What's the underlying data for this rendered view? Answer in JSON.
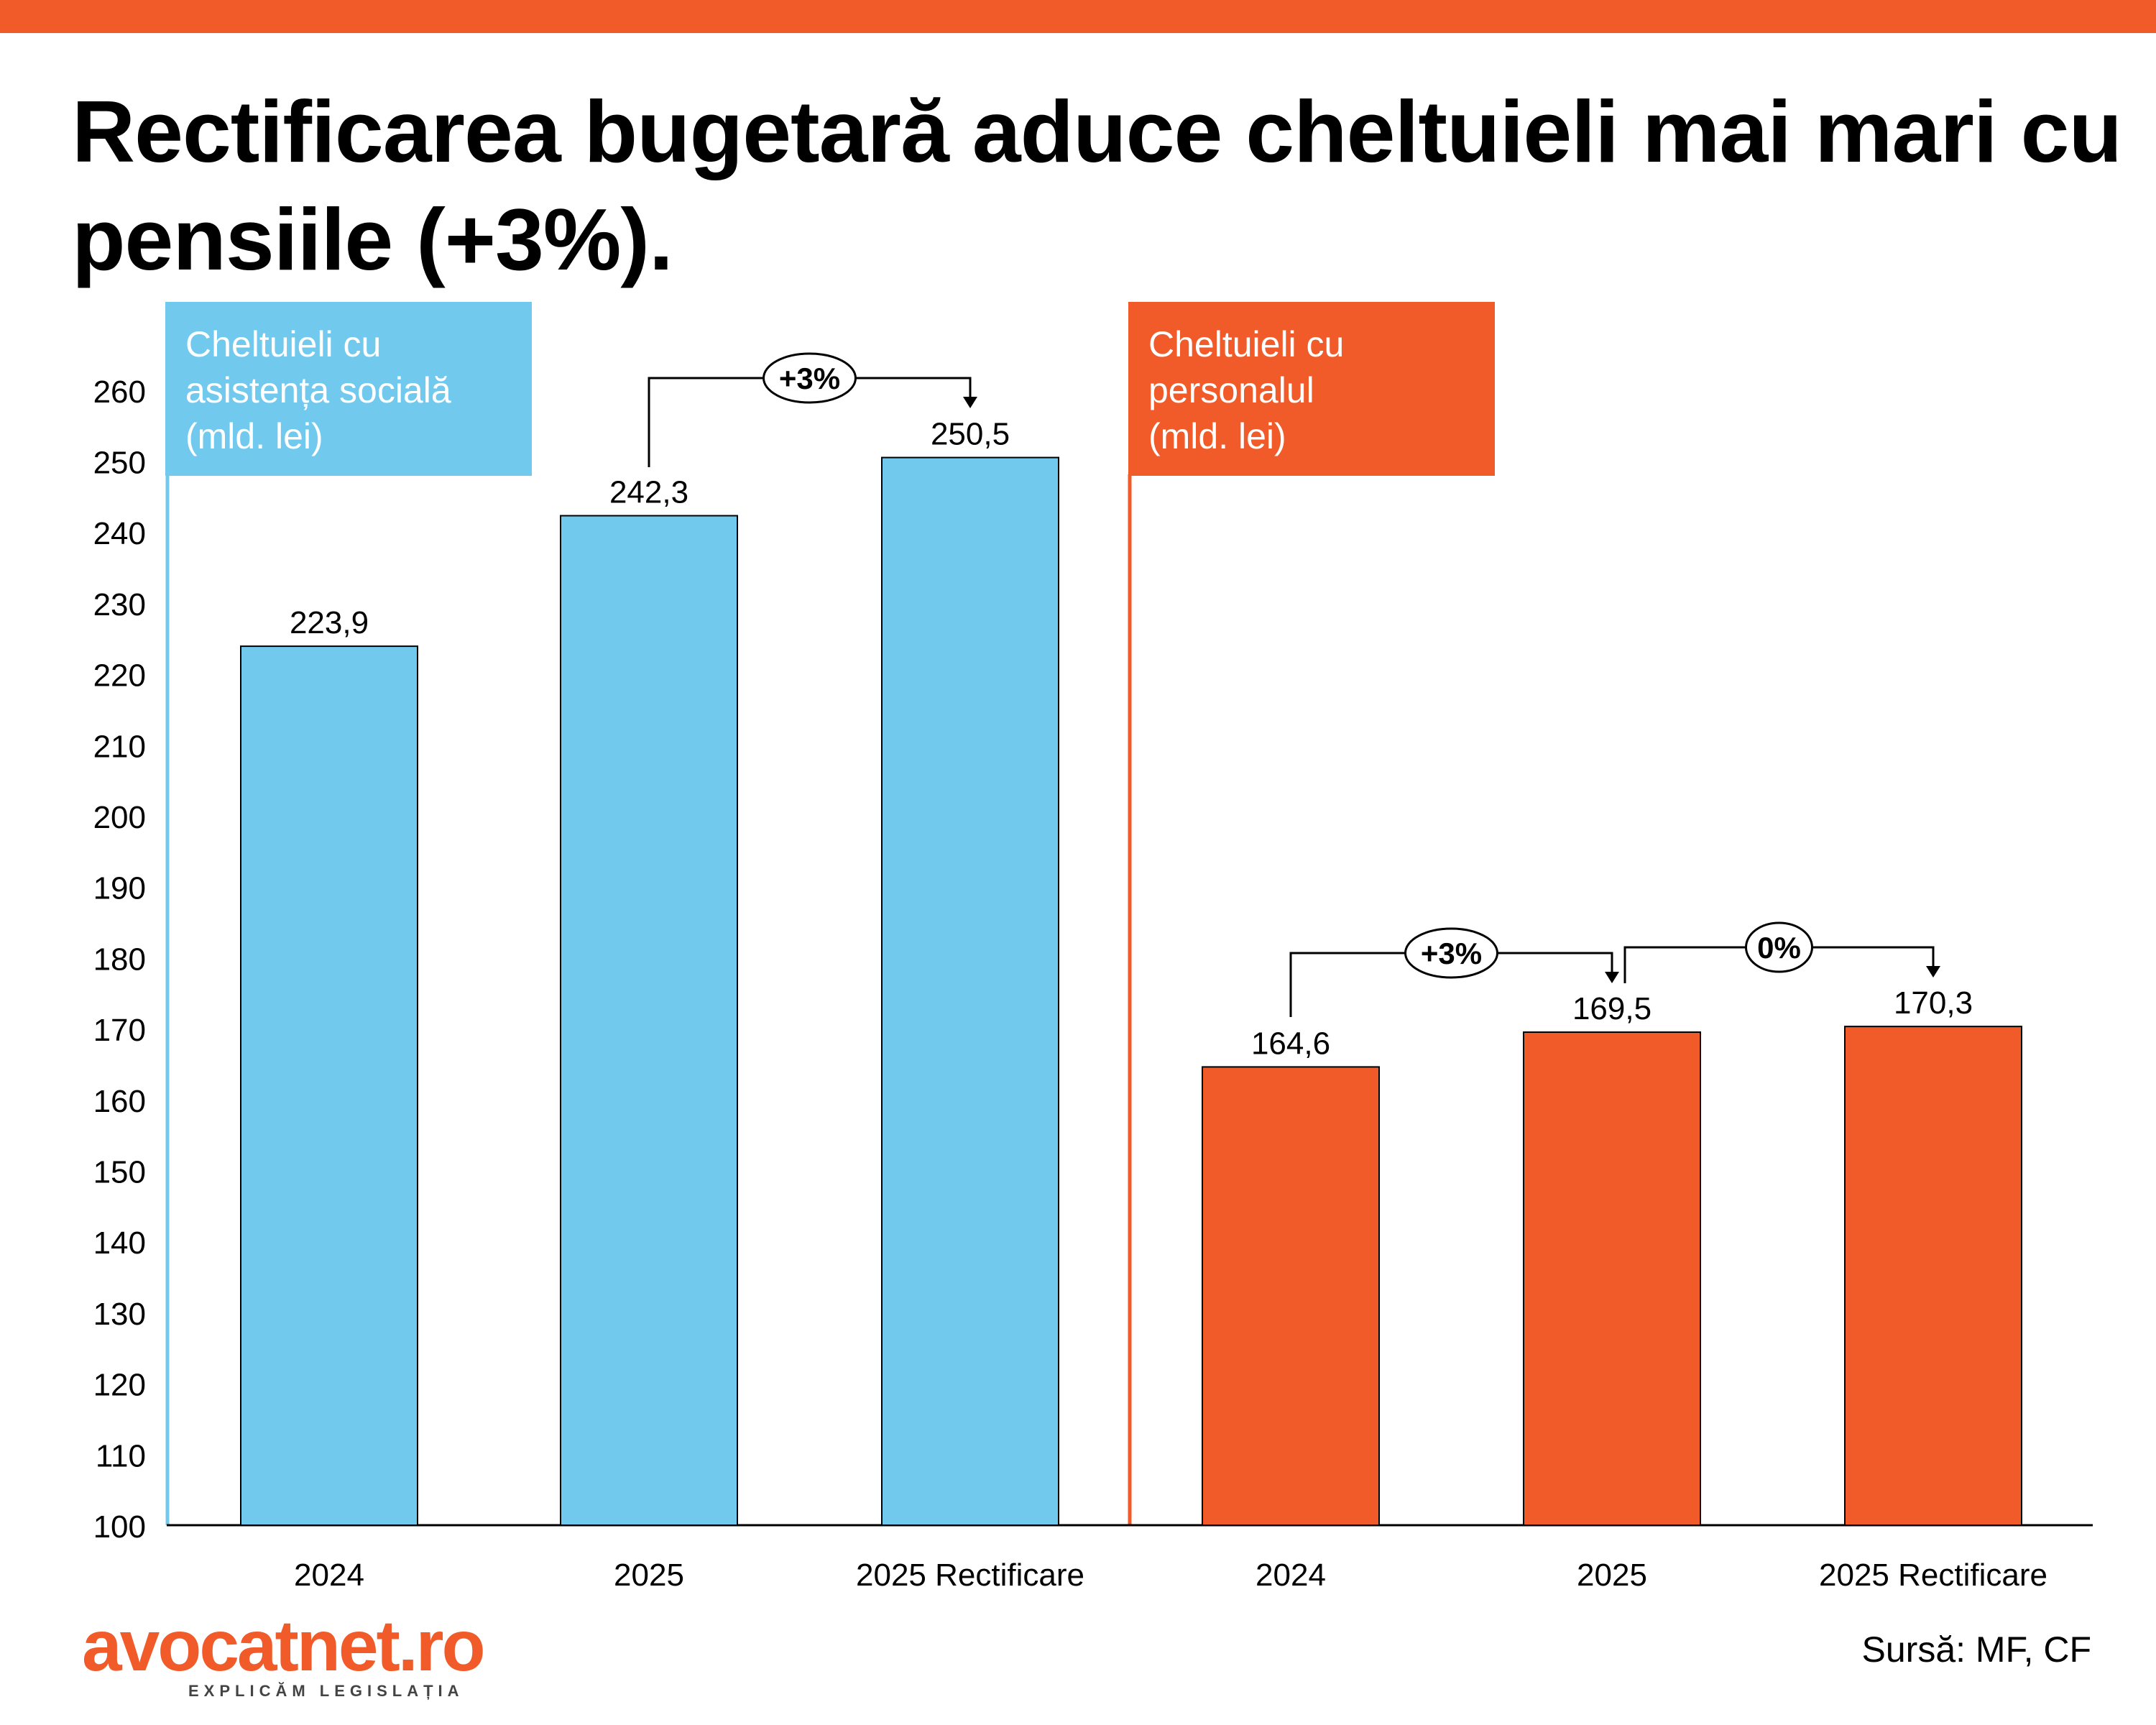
{
  "title": "Rectificarea bugetară aduce cheltuieli mai mari cu pensiile (+3%).",
  "source": "Sursă:  MF, CF",
  "logo": {
    "name": "avocatnet.ro",
    "tagline": "EXPLICĂM LEGISLAȚIA"
  },
  "colors": {
    "accent": "#f15a29",
    "social": "#71c9ee",
    "personnel": "#f15a29"
  },
  "chart_data": {
    "type": "bar",
    "ylim": [
      100,
      265
    ],
    "yticks": [
      100,
      110,
      120,
      130,
      140,
      150,
      160,
      170,
      180,
      190,
      200,
      210,
      220,
      230,
      240,
      250,
      260
    ],
    "groups": [
      {
        "name": "Cheltuieli cu asistența socială (mld. lei)",
        "label_lines": [
          "Cheltuieli cu",
          "asistența socială",
          "(mld. lei)"
        ],
        "color": "#71c9ee",
        "categories": [
          "2024",
          "2025",
          "2025 Rectificare"
        ],
        "values": [
          223.9,
          242.3,
          250.5
        ],
        "value_labels": [
          "223,9",
          "242,3",
          "250,5"
        ]
      },
      {
        "name": "Cheltuieli cu personalul (mld. lei)",
        "label_lines": [
          "Cheltuieli cu",
          "personalul",
          "(mld. lei)"
        ],
        "color": "#f15a29",
        "categories": [
          "2024",
          "2025",
          "2025 Rectificare"
        ],
        "values": [
          164.6,
          169.5,
          170.3
        ],
        "value_labels": [
          "164,6",
          "169,5",
          "170,3"
        ]
      }
    ],
    "annotations": [
      {
        "group": 0,
        "from": 1,
        "to": 2,
        "label": "+3%"
      },
      {
        "group": 1,
        "from": 0,
        "to": 1,
        "label": "+3%"
      },
      {
        "group": 1,
        "from": 1,
        "to": 2,
        "label": "0%"
      }
    ]
  }
}
